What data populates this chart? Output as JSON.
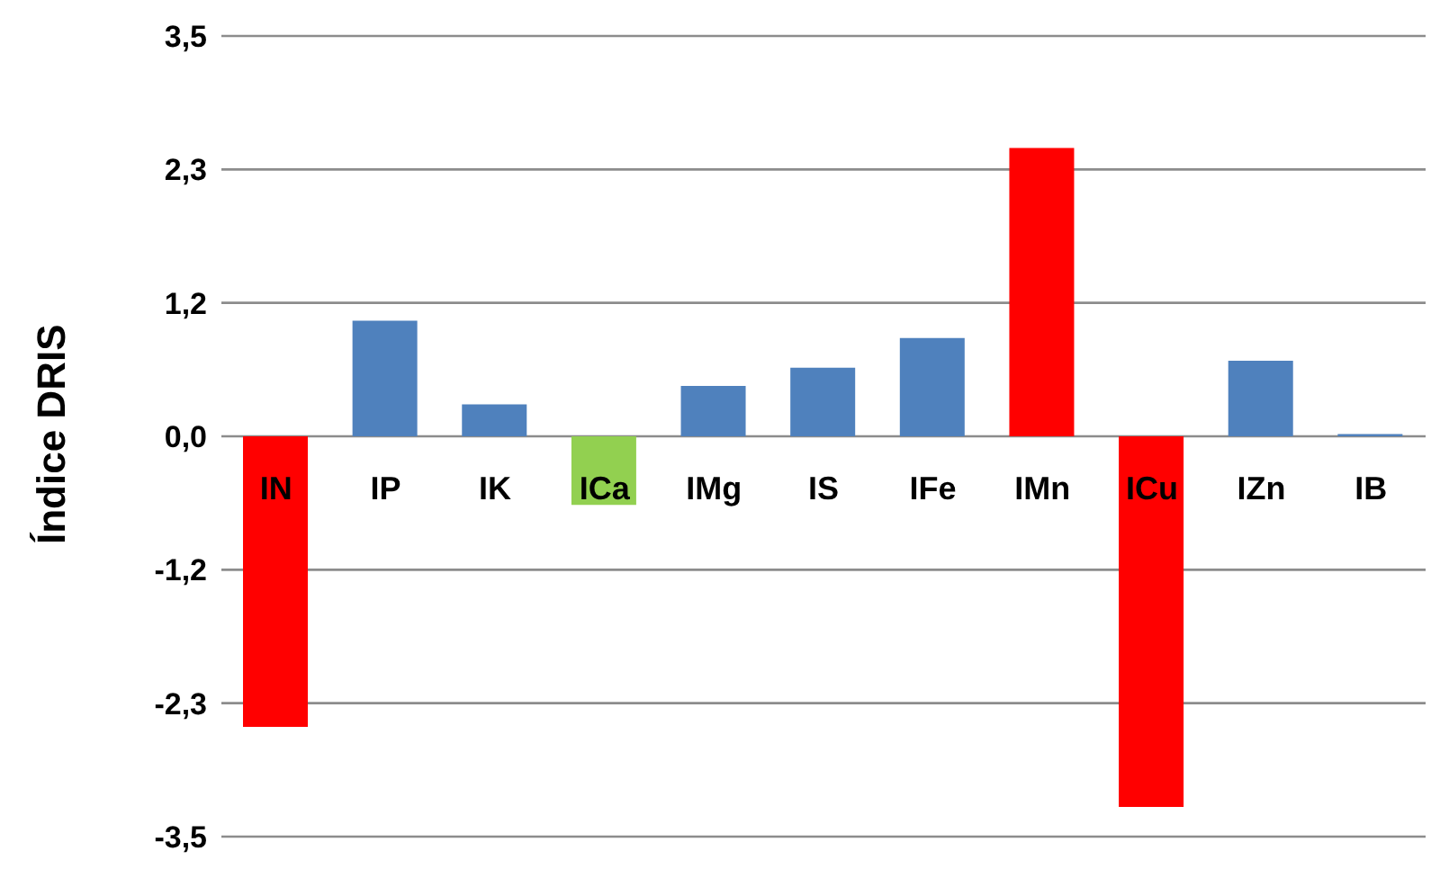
{
  "chart_data": {
    "type": "bar",
    "ylabel": "Índice DRIS",
    "categories": [
      "IN",
      "IP",
      "IK",
      "ICa",
      "IMg",
      "IS",
      "IFe",
      "IMn",
      "ICu",
      "IZn",
      "IB"
    ],
    "values": [
      -2.54,
      1.01,
      0.28,
      -0.6,
      0.44,
      0.6,
      0.86,
      2.52,
      -3.24,
      0.66,
      0.02
    ],
    "colors": [
      "#ff0000",
      "#4f81bd",
      "#4f81bd",
      "#92d050",
      "#4f81bd",
      "#4f81bd",
      "#4f81bd",
      "#ff0000",
      "#ff0000",
      "#4f81bd",
      "#4f81bd"
    ],
    "ylim": [
      -3.5,
      3.5
    ],
    "yticks": [
      {
        "value": -3.5,
        "label": "-3,5"
      },
      {
        "value": -2.3333,
        "label": "-2,3"
      },
      {
        "value": -1.1667,
        "label": "-1,2"
      },
      {
        "value": 0,
        "label": "0,0"
      },
      {
        "value": 1.1667,
        "label": "1,2"
      },
      {
        "value": 2.3333,
        "label": "2,3"
      },
      {
        "value": 3.5,
        "label": "3,5"
      }
    ],
    "grid": "y"
  }
}
